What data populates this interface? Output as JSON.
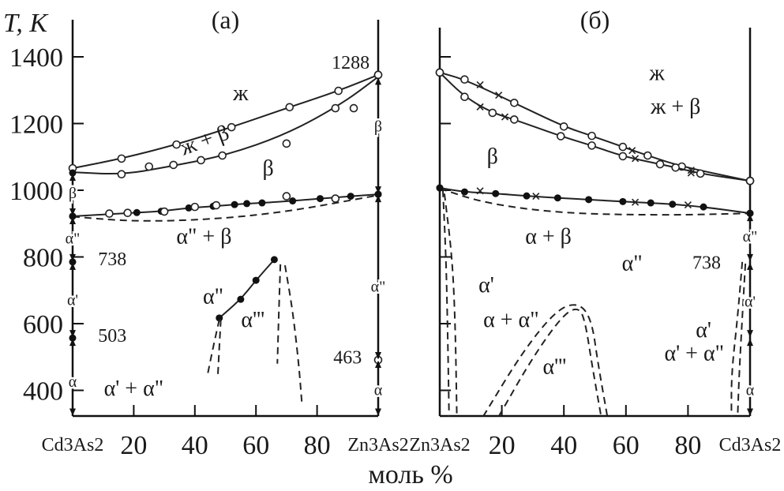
{
  "chart_data": {
    "type": "line",
    "ylabel": "T, K",
    "xlabel": "моль %",
    "yticks": [
      400,
      600,
      800,
      1000,
      1200,
      1400
    ],
    "ylim": [
      322,
      1510
    ],
    "xlim": [
      0,
      100
    ],
    "xticks": [
      20,
      40,
      60,
      80
    ],
    "panels": [
      {
        "title": "(a)",
        "x_left_label": "Cd3As2",
        "x_right_label": "Zn3As2",
        "series": [
          {
            "name": "liquidus",
            "line": "solid",
            "marker": "open",
            "points": [
              [
                0,
                1066
              ],
              [
                16,
                1095
              ],
              [
                34,
                1137
              ],
              [
                52,
                1189
              ],
              [
                71,
                1249
              ],
              [
                87,
                1298
              ],
              [
                100,
                1346
              ]
            ]
          },
          {
            "name": "solidus",
            "line": "solid",
            "marker": "none",
            "points": [
              [
                0,
                1054
              ],
              [
                16,
                1047
              ],
              [
                30,
                1068
              ],
              [
                50,
                1104
              ],
              [
                70,
                1168
              ],
              [
                88,
                1258
              ],
              [
                100,
                1340
              ]
            ]
          },
          {
            "name": "solidus-points",
            "line": "none",
            "marker": "open",
            "points": [
              [
                16,
                1048
              ],
              [
                25,
                1071
              ],
              [
                33,
                1076
              ],
              [
                42,
                1090
              ],
              [
                49,
                1104
              ],
              [
                86,
                1246
              ],
              [
                92,
                1246
              ],
              [
                70,
                1140
              ]
            ]
          },
          {
            "name": "beta-transition",
            "line": "solid",
            "marker": "filled",
            "points": [
              [
                0,
                922
              ],
              [
                21,
                933
              ],
              [
                29,
                937
              ],
              [
                38,
                947
              ],
              [
                46,
                952
              ],
              [
                53,
                957
              ],
              [
                57,
                960
              ],
              [
                62,
                962
              ],
              [
                72,
                968
              ],
              [
                81,
                975
              ],
              [
                91,
                982
              ],
              [
                100,
                988
              ]
            ]
          },
          {
            "name": "beta-transition-open",
            "line": "none",
            "marker": "open",
            "points": [
              [
                12,
                930
              ],
              [
                18,
                932
              ],
              [
                30,
                936
              ],
              [
                40,
                950
              ],
              [
                47,
                955
              ],
              [
                70,
                982
              ],
              [
                86,
                975
              ]
            ]
          },
          {
            "name": "alpha2-beta-lower",
            "line": "dashed",
            "marker": "none",
            "points": [
              [
                0,
                921
              ],
              [
                20,
                906
              ],
              [
                45,
                912
              ],
              [
                70,
                935
              ],
              [
                100,
                985
              ]
            ]
          },
          {
            "name": "alpha2-alpha3",
            "line": "solid",
            "marker": "filled",
            "points": [
              [
                48,
                617
              ],
              [
                55,
                673
              ],
              [
                60,
                730
              ],
              [
                66,
                792
              ]
            ]
          },
          {
            "name": "alpha3-left-1",
            "line": "dashed",
            "marker": "none",
            "points": [
              [
                48,
                612
              ],
              [
                46,
                530
              ],
              [
                44,
                440
              ]
            ]
          },
          {
            "name": "alpha3-left-2",
            "line": "dashed",
            "marker": "none",
            "points": [
              [
                48.5,
                612
              ],
              [
                48,
                530
              ],
              [
                47.5,
                440
              ]
            ]
          },
          {
            "name": "alpha3-right-1",
            "line": "dashed",
            "marker": "none",
            "points": [
              [
                68,
                778
              ],
              [
                67.5,
                640
              ],
              [
                67,
                480
              ]
            ]
          },
          {
            "name": "alpha3-right-2",
            "line": "dashed",
            "marker": "none",
            "points": [
              [
                69.5,
                775
              ],
              [
                72,
                640
              ],
              [
                74,
                480
              ],
              [
                75,
                365
              ]
            ]
          },
          {
            "name": "left-axis-points",
            "line": "none",
            "marker": "filled",
            "points": [
              [
                0,
                1052
              ],
              [
                0,
                922
              ],
              [
                0,
                785
              ],
              [
                0,
                557
              ]
            ]
          },
          {
            "name": "right-axis-open",
            "line": "none",
            "marker": "open",
            "points": [
              [
                100,
                1346
              ],
              [
                100,
                491
              ]
            ]
          },
          {
            "name": "right-axis-filled",
            "line": "none",
            "marker": "filled",
            "points": [
              [
                100,
                988
              ]
            ]
          }
        ],
        "annotations": [
          {
            "text": "ж",
            "x": 55,
            "y": 1270
          },
          {
            "text": "ж + β",
            "x": 44,
            "y": 1130,
            "rotate": -20
          },
          {
            "text": "β",
            "x": 64,
            "y": 1045
          },
          {
            "text": "α\" + β",
            "x": 43,
            "y": 840
          },
          {
            "text": "α\"",
            "x": 46,
            "y": 660
          },
          {
            "text": "α'''",
            "x": 59,
            "y": 590
          },
          {
            "text": "α' + α\"",
            "x": 20,
            "y": 385
          },
          {
            "text": "1288",
            "x": 91,
            "y": 1365
          },
          {
            "text": "738",
            "x": 13,
            "y": 775
          },
          {
            "text": "503",
            "x": 13,
            "y": 545
          },
          {
            "text": "463",
            "x": 90,
            "y": 480
          }
        ],
        "axis_phases_left": [
          [
            "β",
            990
          ],
          [
            "α\"",
            855
          ],
          [
            "α'",
            670
          ],
          [
            "α",
            425
          ]
        ],
        "axis_phases_right": [
          [
            "β",
            1190
          ],
          [
            "α\"",
            710
          ],
          [
            "α",
            400
          ]
        ]
      },
      {
        "title": "(б)",
        "x_left_label": "Zn3As2",
        "x_right_label": "Cd3As2",
        "series": [
          {
            "name": "liquidus",
            "line": "solid",
            "marker": "open",
            "points": [
              [
                0,
                1353
              ],
              [
                8,
                1332
              ],
              [
                24,
                1262
              ],
              [
                40,
                1191
              ],
              [
                49,
                1163
              ],
              [
                59,
                1130
              ],
              [
                67,
                1104
              ],
              [
                78,
                1071
              ],
              [
                100,
                1028
              ]
            ]
          },
          {
            "name": "liquidus-cross",
            "line": "none",
            "marker": "cross",
            "points": [
              [
                13,
                1316
              ],
              [
                19,
                1285
              ],
              [
                62,
                1119
              ],
              [
                81,
                1060
              ]
            ]
          },
          {
            "name": "solidus",
            "line": "solid",
            "marker": "open",
            "points": [
              [
                0,
                1353
              ],
              [
                8,
                1280
              ],
              [
                17,
                1232
              ],
              [
                24,
                1212
              ],
              [
                39,
                1162
              ],
              [
                49,
                1134
              ],
              [
                59,
                1102
              ],
              [
                71,
                1078
              ],
              [
                76,
                1068
              ],
              [
                84,
                1050
              ],
              [
                100,
                1028
              ]
            ]
          },
          {
            "name": "solidus-cross",
            "line": "none",
            "marker": "cross",
            "points": [
              [
                13,
                1250
              ],
              [
                21,
                1220
              ],
              [
                63,
                1095
              ],
              [
                81,
                1052
              ]
            ]
          },
          {
            "name": "beta-transition",
            "line": "solid",
            "marker": "filled",
            "points": [
              [
                0,
                1007
              ],
              [
                8,
                995
              ],
              [
                18,
                990
              ],
              [
                28,
                983
              ],
              [
                38,
                977
              ],
              [
                48,
                972
              ],
              [
                59,
                966
              ],
              [
                68,
                962
              ],
              [
                75,
                958
              ],
              [
                85,
                950
              ],
              [
                100,
                931
              ]
            ]
          },
          {
            "name": "beta-transition-cross",
            "line": "none",
            "marker": "cross",
            "points": [
              [
                13,
                998
              ],
              [
                31,
                982
              ],
              [
                63,
                964
              ],
              [
                80,
                956
              ]
            ]
          },
          {
            "name": "alpha-beta-lower",
            "line": "dashed",
            "marker": "none",
            "points": [
              [
                0,
                1005
              ],
              [
                15,
                960
              ],
              [
                40,
                930
              ],
              [
                75,
                925
              ],
              [
                100,
                931
              ]
            ]
          },
          {
            "name": "alpha3-dome-outer",
            "line": "dashed",
            "marker": "none",
            "points": [
              [
                14,
                322
              ],
              [
                27,
                520
              ],
              [
                38,
                645
              ],
              [
                45,
                663
              ],
              [
                49,
                610
              ],
              [
                51,
                480
              ],
              [
                54,
                322
              ]
            ]
          },
          {
            "name": "alpha3-dome-inner",
            "line": "dashed",
            "marker": "none",
            "points": [
              [
                19,
                322
              ],
              [
                30,
                500
              ],
              [
                40,
                630
              ],
              [
                45,
                650
              ],
              [
                47,
                600
              ],
              [
                49,
                480
              ],
              [
                52,
                322
              ]
            ]
          },
          {
            "name": "alpha1-left-1",
            "line": "dashed",
            "marker": "none",
            "points": [
              [
                1,
                1000
              ],
              [
                2,
                800
              ],
              [
                2.5,
                600
              ],
              [
                3,
                322
              ]
            ]
          },
          {
            "name": "alpha1-left-2",
            "line": "dashed",
            "marker": "none",
            "points": [
              [
                1.5,
                990
              ],
              [
                4,
                800
              ],
              [
                5,
                600
              ],
              [
                5.5,
                322
              ]
            ]
          },
          {
            "name": "alpha1-right-1",
            "line": "dashed",
            "marker": "none",
            "points": [
              [
                97.5,
                785
              ],
              [
                96,
                620
              ],
              [
                94,
                450
              ],
              [
                94,
                322
              ]
            ]
          },
          {
            "name": "alpha1-right-2",
            "line": "dashed",
            "marker": "none",
            "points": [
              [
                98.5,
                780
              ],
              [
                97.5,
                620
              ],
              [
                96.5,
                450
              ],
              [
                96,
                322
              ]
            ]
          },
          {
            "name": "right-axis-open",
            "line": "none",
            "marker": "open",
            "points": [
              [
                100,
                1028
              ]
            ]
          },
          {
            "name": "right-axis-filled",
            "line": "none",
            "marker": "filled",
            "points": [
              [
                100,
                931
              ],
              [
                0,
                1007
              ]
            ]
          }
        ],
        "annotations": [
          {
            "text": "ж",
            "x": 70,
            "y": 1330
          },
          {
            "text": "ж + β",
            "x": 76,
            "y": 1230
          },
          {
            "text": "β",
            "x": 17,
            "y": 1080
          },
          {
            "text": "α + β",
            "x": 35,
            "y": 840
          },
          {
            "text": "α\"",
            "x": 62,
            "y": 760
          },
          {
            "text": "α'",
            "x": 15,
            "y": 695
          },
          {
            "text": "α + α\"",
            "x": 23,
            "y": 590
          },
          {
            "text": "α'''",
            "x": 37,
            "y": 450
          },
          {
            "text": "738",
            "x": 86,
            "y": 765
          },
          {
            "text": "α'",
            "x": 85,
            "y": 560
          },
          {
            "text": "α' + α\"",
            "x": 82,
            "y": 490
          }
        ],
        "axis_phases_right": [
          [
            "α\"",
            860
          ],
          [
            "α'",
            665
          ],
          [
            "α",
            400
          ]
        ]
      }
    ]
  }
}
